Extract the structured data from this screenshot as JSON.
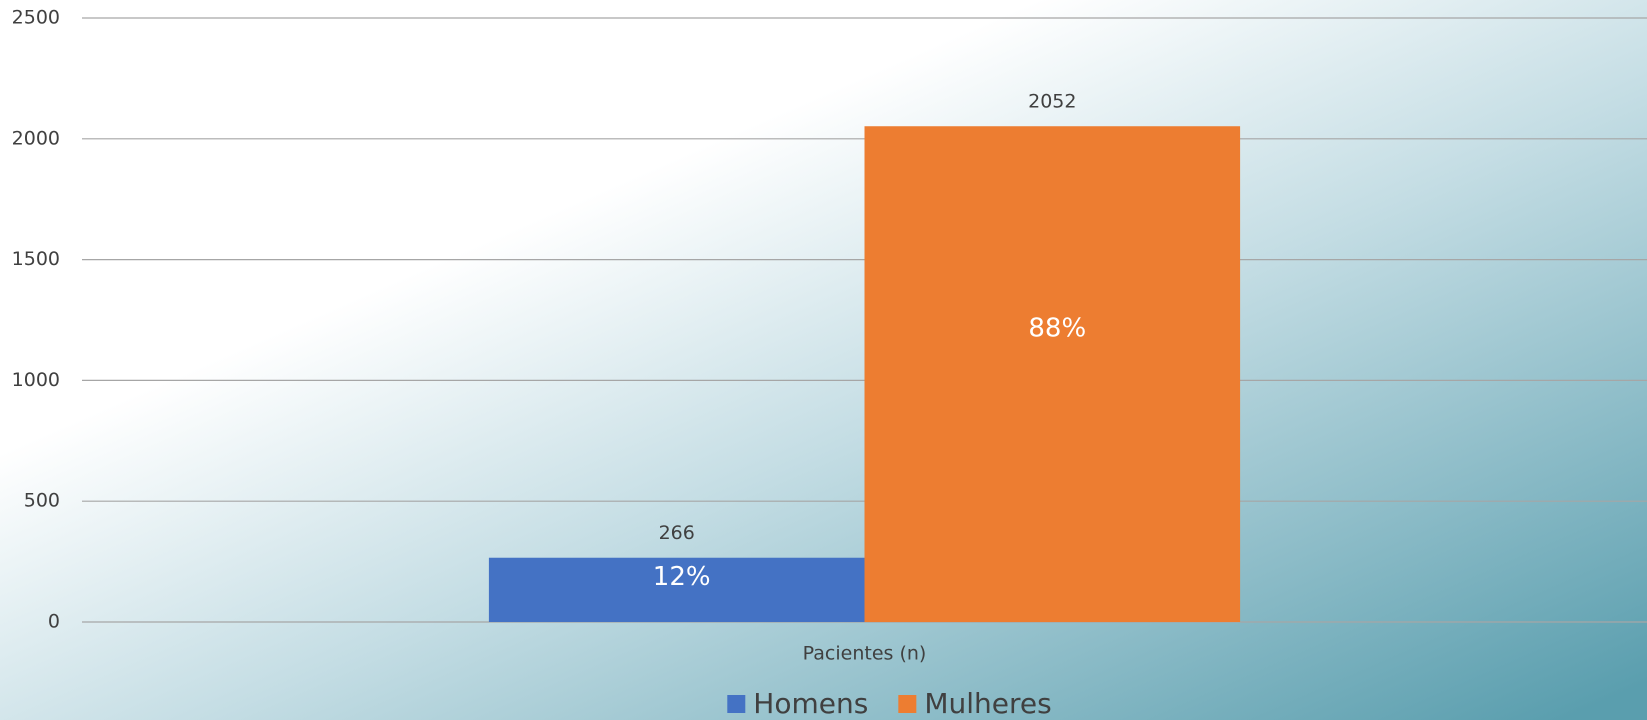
{
  "chart_data": {
    "type": "bar",
    "categories": [
      "Pacientes (n)"
    ],
    "series": [
      {
        "name": "Homens",
        "color": "#4472c4",
        "values": [
          266
        ],
        "inner_labels": [
          "12%"
        ]
      },
      {
        "name": "Mulheres",
        "color": "#ed7d31",
        "values": [
          2052
        ],
        "inner_labels": [
          "88%"
        ]
      }
    ],
    "ylim": [
      0,
      2500
    ],
    "yticks": [
      0,
      500,
      1000,
      1500,
      2000,
      2500
    ],
    "grid": true,
    "legend": "bottom"
  }
}
